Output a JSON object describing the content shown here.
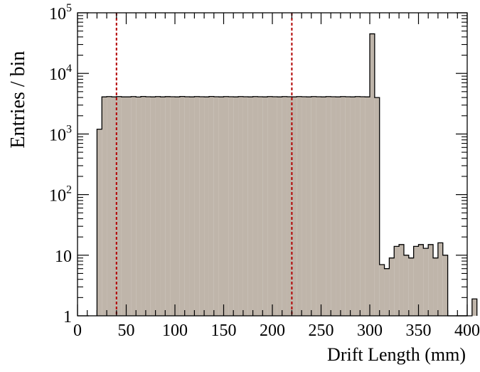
{
  "chart_data": {
    "type": "bar",
    "xlabel": "Drift Length (mm)",
    "ylabel": "Entries / bin",
    "x_ticks": [
      "0",
      "50",
      "100",
      "150",
      "200",
      "250",
      "300",
      "350",
      "400"
    ],
    "y_ticks": [
      "1",
      "10",
      "10^2",
      "10^3",
      "10^4",
      "10^5"
    ],
    "xlim": [
      0,
      400
    ],
    "ylim": [
      1,
      100000
    ],
    "yscale": "log",
    "bin_width": 5,
    "bin_edges_start": 20,
    "bin_values": [
      1200,
      4100,
      4150,
      4100,
      4150,
      4100,
      4100,
      4150,
      4080,
      4160,
      4120,
      4100,
      4150,
      4100,
      4140,
      4120,
      4100,
      4160,
      4120,
      4100,
      4150,
      4120,
      4100,
      4160,
      4120,
      4100,
      4150,
      4120,
      4100,
      4150,
      4120,
      4100,
      4150,
      4120,
      4100,
      4150,
      4120,
      4100,
      4150,
      4120,
      4100,
      4150,
      4120,
      4100,
      4150,
      4120,
      4100,
      4150,
      4120,
      4100,
      4150,
      4120,
      4100,
      4150,
      4120,
      4100,
      45000,
      4000,
      7,
      6,
      9,
      14,
      15,
      10,
      9,
      14,
      15,
      13,
      15,
      9,
      16,
      10,
      1,
      1,
      0,
      0,
      0,
      1.9
    ],
    "vlines": [
      {
        "x": 40,
        "color": "#b30000",
        "style": "dotted"
      },
      {
        "x": 220,
        "color": "#b30000",
        "style": "dotted"
      }
    ],
    "fill_color": "#bfb5aa",
    "line_color": "#000000",
    "grid": false
  }
}
